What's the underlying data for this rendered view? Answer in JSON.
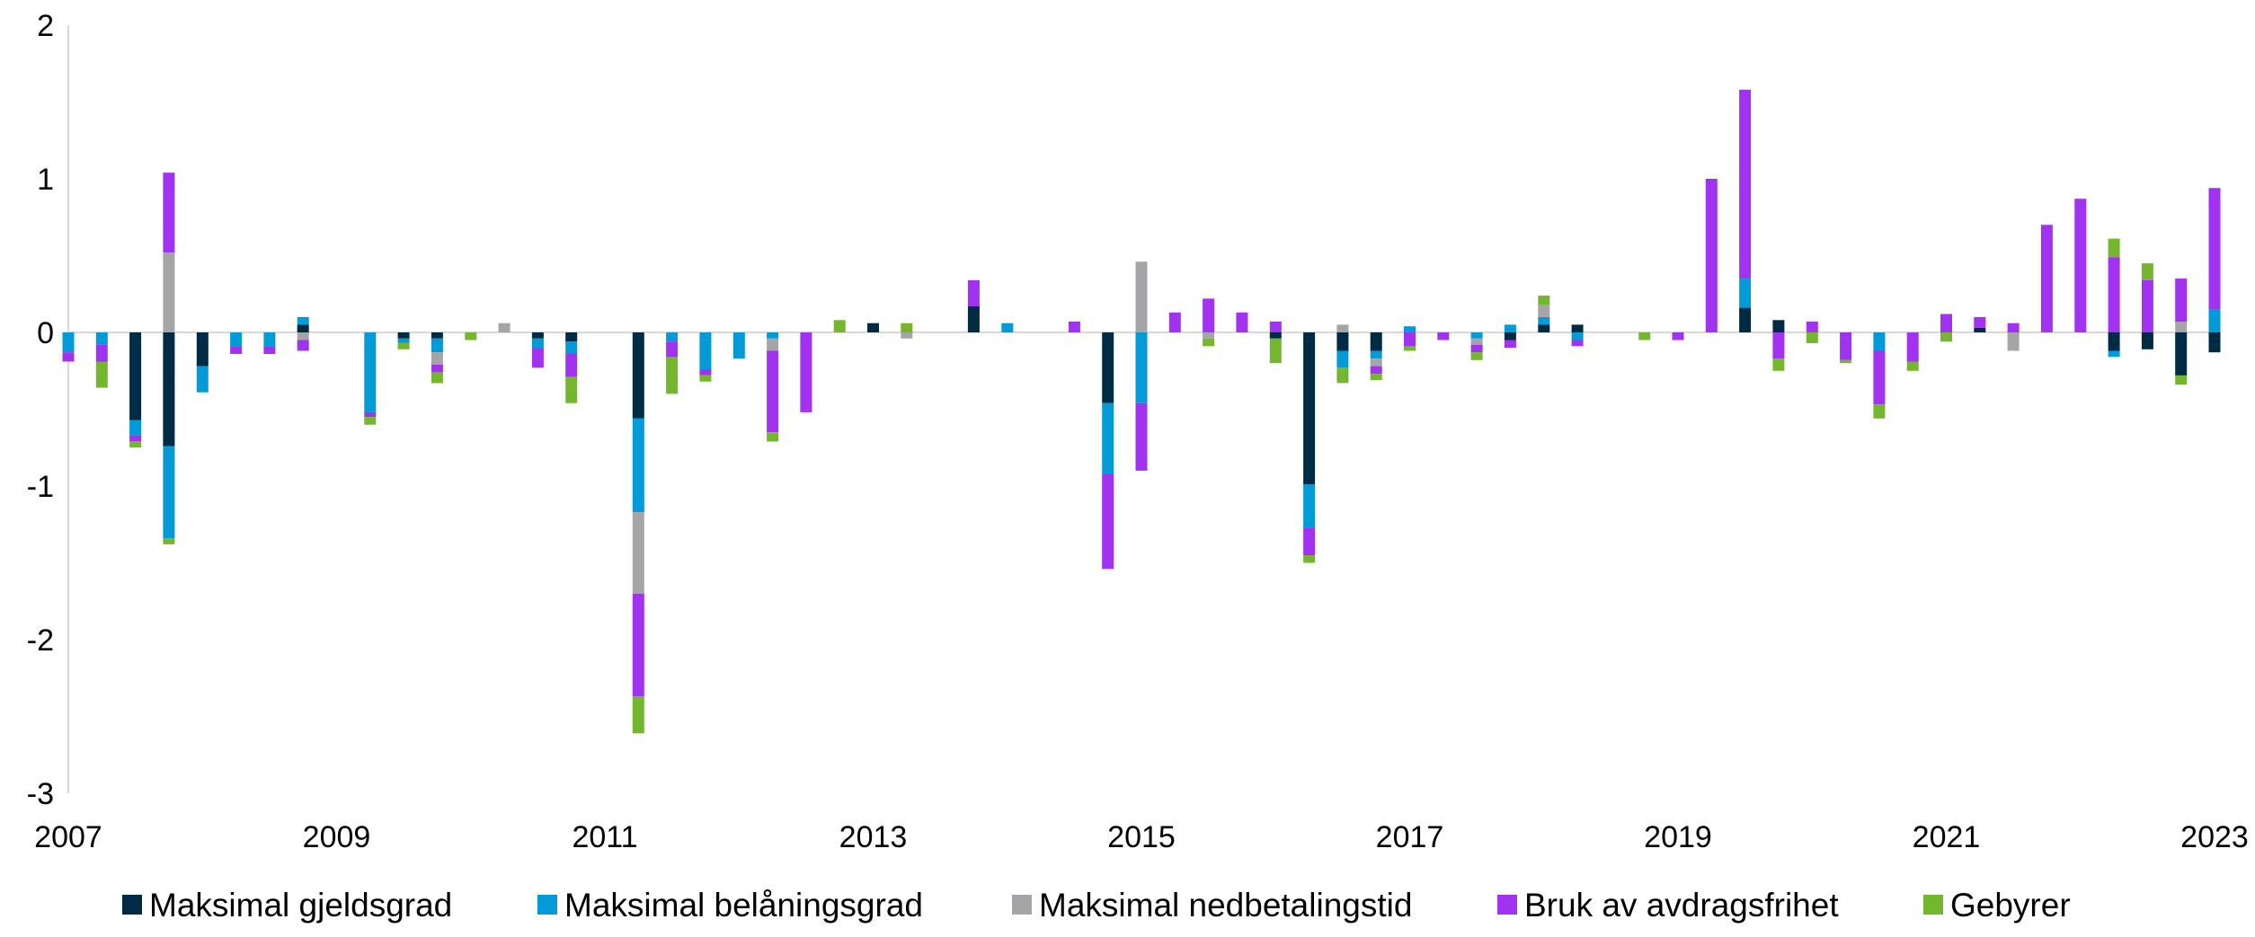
{
  "chart_data": {
    "type": "bar",
    "stacked": true,
    "ylim": [
      -3,
      2
    ],
    "yticks": [
      2,
      1,
      0,
      -1,
      -2,
      -3
    ],
    "xlim": [
      2007,
      2023
    ],
    "xticks": [
      2007,
      2009,
      2011,
      2013,
      2015,
      2017,
      2019,
      2021,
      2023
    ],
    "grid": false,
    "legend": "bottom",
    "series": [
      {
        "name": "Maksimal gjeldsgrad",
        "color": "#002B45"
      },
      {
        "name": "Maksimal belåningsgrad",
        "color": "#039BD7"
      },
      {
        "name": "Maksimal nedbetalingstid",
        "color": "#A5A5A8"
      },
      {
        "name": "Bruk av avdragsfrihet",
        "color": "#A032F0"
      },
      {
        "name": "Gebyrer",
        "color": "#74B72E"
      }
    ],
    "quarters": [
      {
        "x": 2007.0,
        "values": [
          0,
          -0.13,
          0,
          -0.06,
          0
        ]
      },
      {
        "x": 2007.25,
        "values": [
          0,
          -0.08,
          0,
          -0.11,
          -0.17
        ]
      },
      {
        "x": 2007.5,
        "values": [
          -0.57,
          -0.1,
          0,
          -0.04,
          -0.04
        ]
      },
      {
        "x": 2007.75,
        "values": [
          -0.74,
          -0.6,
          0.52,
          0.52,
          -0.04
        ]
      },
      {
        "x": 2008.0,
        "values": [
          -0.22,
          -0.17,
          0,
          0,
          0
        ]
      },
      {
        "x": 2008.25,
        "values": [
          0,
          -0.09,
          0,
          -0.05,
          0
        ]
      },
      {
        "x": 2008.5,
        "values": [
          0,
          -0.09,
          0,
          -0.05,
          0
        ]
      },
      {
        "x": 2008.75,
        "values": [
          0.05,
          0.05,
          -0.05,
          -0.07,
          0
        ]
      },
      {
        "x": 2009.0,
        "values": [
          0,
          0,
          0,
          0,
          0
        ]
      },
      {
        "x": 2009.25,
        "values": [
          0,
          -0.52,
          0,
          -0.03,
          -0.05
        ]
      },
      {
        "x": 2009.5,
        "values": [
          -0.04,
          -0.03,
          0,
          0,
          -0.04
        ]
      },
      {
        "x": 2009.75,
        "values": [
          -0.04,
          -0.09,
          -0.08,
          -0.05,
          -0.07
        ]
      },
      {
        "x": 2010.0,
        "values": [
          0,
          0,
          0,
          0,
          -0.05
        ]
      },
      {
        "x": 2010.25,
        "values": [
          0,
          0,
          0.06,
          0,
          0
        ]
      },
      {
        "x": 2010.5,
        "values": [
          -0.04,
          -0.06,
          0,
          -0.13,
          0
        ]
      },
      {
        "x": 2010.75,
        "values": [
          -0.06,
          -0.08,
          0,
          -0.15,
          -0.17
        ]
      },
      {
        "x": 2011.0,
        "values": [
          0,
          0,
          0,
          0,
          0
        ]
      },
      {
        "x": 2011.25,
        "values": [
          -0.56,
          -0.61,
          -0.53,
          -0.67,
          -0.24
        ]
      },
      {
        "x": 2011.5,
        "values": [
          0,
          -0.06,
          0,
          -0.1,
          -0.24
        ]
      },
      {
        "x": 2011.75,
        "values": [
          0,
          -0.24,
          0,
          -0.04,
          -0.04
        ]
      },
      {
        "x": 2012.0,
        "values": [
          0,
          -0.17,
          0,
          0,
          0
        ]
      },
      {
        "x": 2012.25,
        "values": [
          0,
          -0.04,
          -0.08,
          -0.53,
          -0.06
        ]
      },
      {
        "x": 2012.5,
        "values": [
          0,
          0,
          0,
          -0.52,
          0
        ]
      },
      {
        "x": 2012.75,
        "values": [
          0,
          0,
          0,
          0,
          0.08
        ]
      },
      {
        "x": 2013.0,
        "values": [
          0.06,
          0,
          0,
          0,
          0
        ]
      },
      {
        "x": 2013.25,
        "values": [
          0,
          0,
          -0.04,
          0,
          0.06
        ]
      },
      {
        "x": 2013.5,
        "values": [
          0,
          0,
          0,
          0,
          0
        ]
      },
      {
        "x": 2013.75,
        "values": [
          0.17,
          0,
          0,
          0.17,
          0
        ]
      },
      {
        "x": 2014.0,
        "values": [
          0,
          0.06,
          0,
          0,
          0
        ]
      },
      {
        "x": 2014.25,
        "values": [
          0,
          0,
          0,
          0,
          0
        ]
      },
      {
        "x": 2014.5,
        "values": [
          0,
          0,
          0,
          0.07,
          0
        ]
      },
      {
        "x": 2014.75,
        "values": [
          -0.46,
          -0.46,
          0,
          -0.62,
          0
        ]
      },
      {
        "x": 2015.0,
        "values": [
          0,
          -0.46,
          0.46,
          -0.44,
          0
        ]
      },
      {
        "x": 2015.25,
        "values": [
          0,
          0,
          0,
          0.13,
          0
        ]
      },
      {
        "x": 2015.5,
        "values": [
          0,
          0,
          -0.04,
          0.22,
          -0.05
        ]
      },
      {
        "x": 2015.75,
        "values": [
          0,
          0,
          0,
          0.13,
          0
        ]
      },
      {
        "x": 2016.0,
        "values": [
          -0.04,
          0,
          0,
          0.07,
          -0.16
        ]
      },
      {
        "x": 2016.25,
        "values": [
          -0.99,
          -0.28,
          0,
          -0.18,
          -0.05
        ]
      },
      {
        "x": 2016.5,
        "values": [
          -0.12,
          -0.11,
          0.05,
          0,
          -0.1
        ]
      },
      {
        "x": 2016.75,
        "values": [
          -0.12,
          -0.05,
          -0.05,
          -0.05,
          -0.04
        ]
      },
      {
        "x": 2017.0,
        "values": [
          0,
          0.04,
          0,
          -0.09,
          -0.03
        ]
      },
      {
        "x": 2017.25,
        "values": [
          0,
          0,
          0,
          -0.05,
          0
        ]
      },
      {
        "x": 2017.5,
        "values": [
          0,
          -0.04,
          -0.04,
          -0.05,
          -0.05
        ]
      },
      {
        "x": 2017.75,
        "values": [
          -0.05,
          0.05,
          0,
          -0.05,
          0
        ]
      },
      {
        "x": 2018.0,
        "values": [
          0.05,
          0.05,
          0.08,
          0,
          0.06
        ]
      },
      {
        "x": 2018.25,
        "values": [
          0.05,
          -0.05,
          0,
          -0.04,
          0
        ]
      },
      {
        "x": 2018.5,
        "values": [
          0,
          0,
          0,
          0,
          0
        ]
      },
      {
        "x": 2018.75,
        "values": [
          0,
          0,
          0,
          0,
          -0.05
        ]
      },
      {
        "x": 2019.0,
        "values": [
          0,
          0,
          0,
          -0.05,
          0
        ]
      },
      {
        "x": 2019.25,
        "values": [
          0,
          0,
          0,
          1.0,
          0
        ]
      },
      {
        "x": 2019.5,
        "values": [
          0.16,
          0.19,
          0,
          1.23,
          0
        ]
      },
      {
        "x": 2019.75,
        "values": [
          0.08,
          0,
          0,
          -0.17,
          -0.08
        ]
      },
      {
        "x": 2020.0,
        "values": [
          0,
          0,
          0,
          0.07,
          -0.07
        ]
      },
      {
        "x": 2020.25,
        "values": [
          0,
          0,
          0,
          -0.18,
          -0.02
        ]
      },
      {
        "x": 2020.5,
        "values": [
          0,
          -0.12,
          0,
          -0.35,
          -0.09
        ]
      },
      {
        "x": 2020.75,
        "values": [
          0,
          0,
          0,
          -0.19,
          -0.06
        ]
      },
      {
        "x": 2021.0,
        "values": [
          0,
          0,
          0,
          0.12,
          -0.06
        ]
      },
      {
        "x": 2021.25,
        "values": [
          0.03,
          0,
          0,
          0.07,
          0
        ]
      },
      {
        "x": 2021.5,
        "values": [
          0,
          0,
          -0.12,
          0.06,
          0
        ]
      },
      {
        "x": 2021.75,
        "values": [
          0,
          0,
          0,
          0.7,
          0
        ]
      },
      {
        "x": 2022.0,
        "values": [
          0,
          0,
          0,
          0.87,
          0
        ]
      },
      {
        "x": 2022.25,
        "values": [
          -0.12,
          -0.04,
          0,
          0.49,
          0.12
        ]
      },
      {
        "x": 2022.5,
        "values": [
          -0.11,
          0,
          0,
          0.34,
          0.11
        ]
      },
      {
        "x": 2022.75,
        "values": [
          -0.28,
          0,
          0.07,
          0.28,
          -0.06
        ]
      },
      {
        "x": 2023.0,
        "values": [
          -0.13,
          0.15,
          0,
          0.79,
          0
        ]
      }
    ]
  }
}
